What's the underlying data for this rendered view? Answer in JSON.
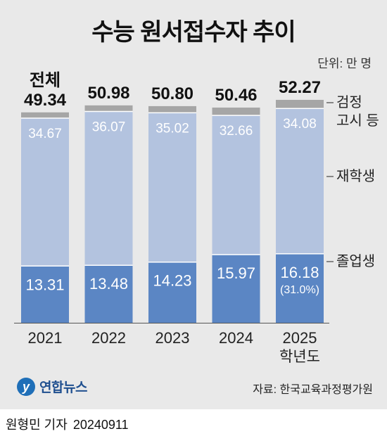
{
  "title": "수능 원서접수자 추이",
  "unit_label": "단위: 만 명",
  "source": "자료: 한국교육과정평가원",
  "logo_text": "연합뉴스",
  "byline": {
    "author": "원형민 기자",
    "date": "20240911"
  },
  "chart_data": {
    "type": "bar",
    "stacked": true,
    "categories": [
      "2021",
      "2022",
      "2023",
      "2024",
      "2025"
    ],
    "category_sublabels": [
      "",
      "",
      "",
      "",
      "학년도"
    ],
    "series": [
      {
        "name": "졸업생",
        "values": [
          13.31,
          13.48,
          14.23,
          15.97,
          16.18
        ],
        "color": "#5b86c4"
      },
      {
        "name": "재학생",
        "values": [
          34.67,
          36.07,
          35.02,
          32.66,
          34.08
        ],
        "color": "#b3c3df"
      },
      {
        "name": "검정 고시 등",
        "values": [
          1.36,
          1.43,
          1.55,
          1.83,
          2.01
        ],
        "color": "#a6a6a6"
      }
    ],
    "totals": [
      49.34,
      50.98,
      50.8,
      50.46,
      52.27
    ],
    "total_labels": [
      "49.34",
      "50.98",
      "50.80",
      "50.46",
      "52.27"
    ],
    "total_prefix": "전체",
    "graduate_labels": [
      "13.31",
      "13.48",
      "14.23",
      "15.97",
      "16.18"
    ],
    "enrolled_labels": [
      "34.67",
      "36.07",
      "35.02",
      "32.66",
      "34.08"
    ],
    "annotation": "(31.0%)",
    "ylim": [
      0,
      52.27
    ],
    "legend_position": "right",
    "grid": false
  }
}
